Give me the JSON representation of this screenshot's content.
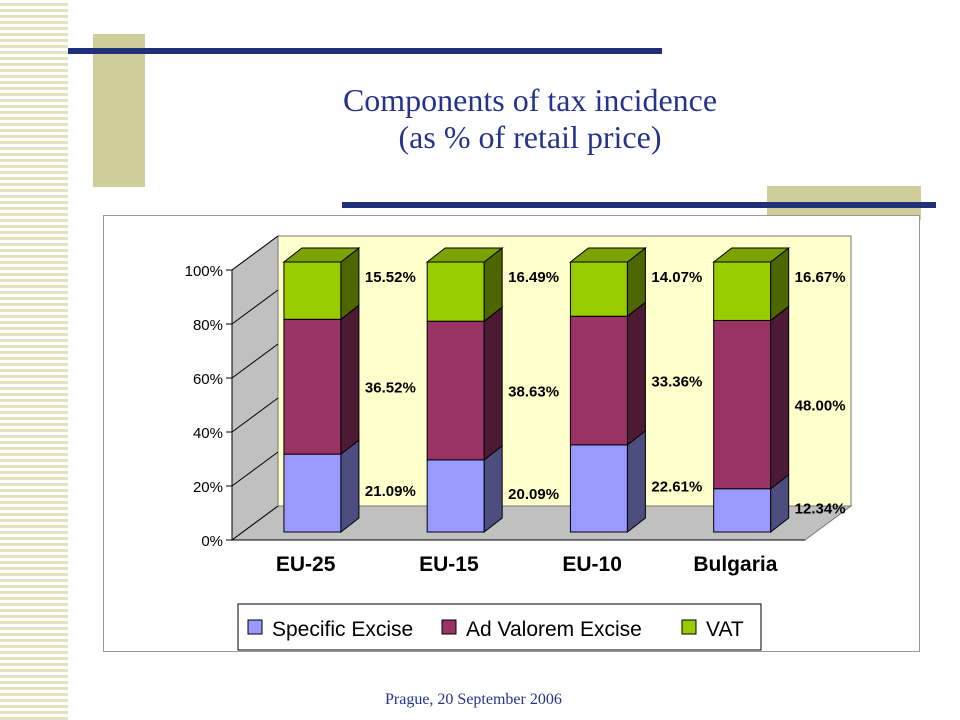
{
  "slide": {
    "title_line1": "Components of tax incidence",
    "title_line2": "(as % of retail price)",
    "footer": "Prague, 20 September 2006"
  },
  "colors": {
    "title": "#25348a",
    "specific_excise": "#9999ff",
    "ad_valorem_excise": "#993366",
    "vat": "#99cc00",
    "plot_back": "#ffffcc",
    "decor_bar": "#cfcd9a",
    "decor_line": "#1f2f7a"
  },
  "chart_data": {
    "type": "bar",
    "stacked": true,
    "percent_stacked": true,
    "three_d": true,
    "categories": [
      "EU-25",
      "EU-15",
      "EU-10",
      "Bulgaria"
    ],
    "series": [
      {
        "name": "Specific Excise",
        "values": [
          21.09,
          20.09,
          22.61,
          12.34
        ],
        "labels": [
          "21.09%",
          "20.09%",
          "22.61%",
          "12.34%"
        ]
      },
      {
        "name": "Ad Valorem Excise",
        "values": [
          36.52,
          38.63,
          33.36,
          48.0
        ],
        "labels": [
          "36.52%",
          "38.63%",
          "33.36%",
          "48.00%"
        ]
      },
      {
        "name": "VAT",
        "values": [
          15.52,
          16.49,
          14.07,
          16.67
        ],
        "labels": [
          "15.52%",
          "16.49%",
          "14.07%",
          "16.67%"
        ]
      }
    ],
    "y_ticks": [
      "0%",
      "20%",
      "40%",
      "60%",
      "80%",
      "100%"
    ],
    "ylim": [
      0,
      100
    ],
    "legend": [
      "Specific Excise",
      "Ad Valorem Excise",
      "VAT"
    ],
    "legend_position": "bottom",
    "grid": false
  }
}
